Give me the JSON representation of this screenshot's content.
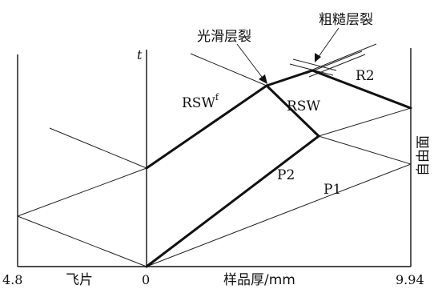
{
  "labels": {
    "t_axis": "t",
    "smooth_spall": "光滑层裂",
    "rough_spall": "粗糙层裂",
    "rsw_f_base": "RSW",
    "rsw_f_sup": "f",
    "rsw": "RSW",
    "r2": "R2",
    "p2": "P2",
    "p1": "P1",
    "free_surface": "自由面"
  },
  "x_axis": {
    "tick_left": "4.8",
    "flyer_label": "飞片",
    "tick_zero": "0",
    "thickness_label": "样品厚/mm",
    "tick_right": "9.94"
  }
}
